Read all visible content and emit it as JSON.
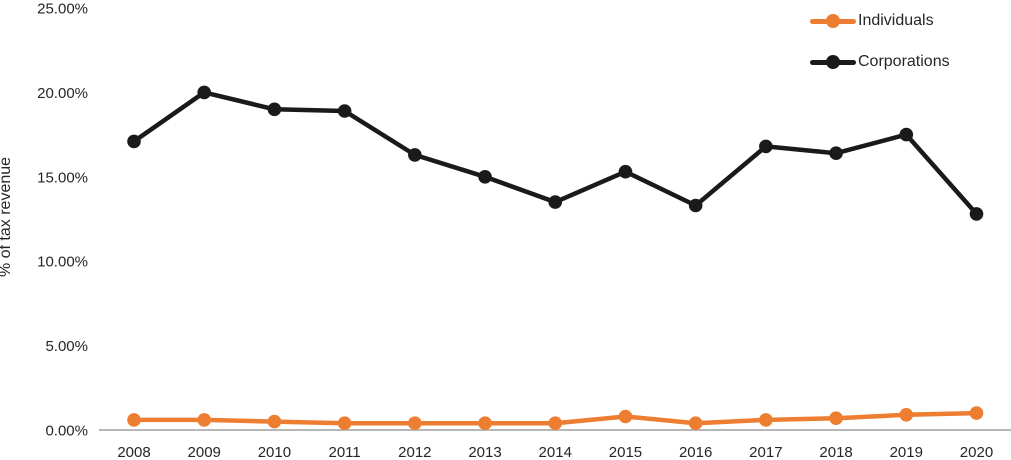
{
  "chart_data": {
    "type": "line",
    "title": "",
    "ylabel": "% of tax revenue",
    "xlabel": "",
    "categories": [
      "2008",
      "2009",
      "2010",
      "2011",
      "2012",
      "2013",
      "2014",
      "2015",
      "2016",
      "2017",
      "2018",
      "2019",
      "2020"
    ],
    "series": [
      {
        "name": "Individuals",
        "color": "#ED7D31",
        "values": [
          0.6,
          0.6,
          0.5,
          0.4,
          0.4,
          0.4,
          0.4,
          0.8,
          0.4,
          0.6,
          0.7,
          0.9,
          1.0
        ]
      },
      {
        "name": "Corporations",
        "color": "#1A1A1A",
        "values": [
          17.1,
          20.0,
          19.0,
          18.9,
          16.3,
          15.0,
          13.5,
          15.3,
          13.3,
          16.8,
          16.4,
          17.5,
          12.8
        ]
      }
    ],
    "ylim": [
      0,
      25
    ],
    "yticks": [
      0,
      5,
      10,
      15,
      20,
      25
    ],
    "ytick_labels": [
      "0.00%",
      "5.00%",
      "10.00%",
      "15.00%",
      "20.00%",
      "25.00%"
    ],
    "grid": false,
    "legend_position": "top-right",
    "marker": "circle",
    "axis_line_color": "#B7B7B7",
    "text_color": "#262626"
  }
}
